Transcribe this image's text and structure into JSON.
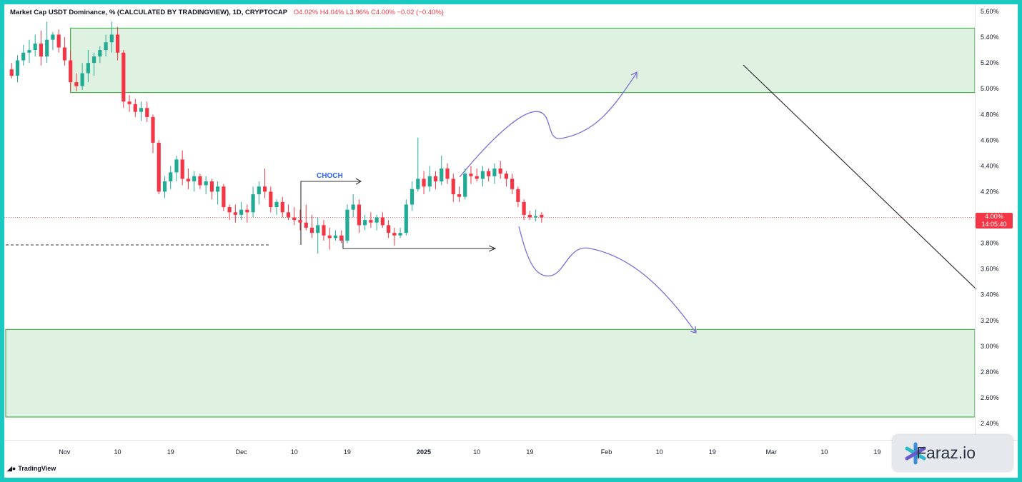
{
  "header": {
    "title": "Market Cap USDT Dominance, % (CALCULATED BY TRADINGVIEW), 1D, CRYPTOCAP",
    "ohlc": "O4.02%  H4.04%  L3.96%  C4.00%  −0.02 (−0.40%)"
  },
  "price_label": {
    "value": "4.00%",
    "timer": "14:05:40"
  },
  "annotation": {
    "choch": "CHOCH"
  },
  "branding": {
    "tradingview": "TradingView",
    "site": "Faraz.io"
  },
  "colors": {
    "up": "#22ab94",
    "down": "#f23645",
    "zone": "#4caf50",
    "zone_fill": "#dff2e1",
    "arrow": "#7b6fd6",
    "frame": "#1bc9c0"
  },
  "chart_data": {
    "type": "candlestick",
    "title": "Market Cap USDT Dominance, % (CALCULATED BY TRADINGVIEW), 1D, CRYPTOCAP",
    "y_unit": "%",
    "ylim": [
      2.4,
      5.6
    ],
    "y_ticks": [
      "5.60%",
      "5.40%",
      "5.20%",
      "5.00%",
      "4.80%",
      "4.60%",
      "4.40%",
      "4.20%",
      "4.00%",
      "3.80%",
      "3.60%",
      "3.40%",
      "3.20%",
      "3.00%",
      "2.80%",
      "2.60%",
      "2.40%"
    ],
    "x_ticks": [
      "Nov",
      "10",
      "19",
      "Dec",
      "10",
      "19",
      "2025",
      "10",
      "19",
      "Feb",
      "10",
      "19",
      "Mar",
      "10",
      "19"
    ],
    "x_range": [
      "2024-10-22",
      "2025-03-27"
    ],
    "candles": [
      [
        "2024-10-23",
        5.15,
        5.2,
        5.08,
        5.1
      ],
      [
        "2024-10-24",
        5.1,
        5.26,
        5.05,
        5.22
      ],
      [
        "2024-10-25",
        5.22,
        5.34,
        5.18,
        5.28
      ],
      [
        "2024-10-26",
        5.28,
        5.38,
        5.2,
        5.3
      ],
      [
        "2024-10-27",
        5.3,
        5.42,
        5.25,
        5.35
      ],
      [
        "2024-10-28",
        5.35,
        5.45,
        5.18,
        5.25
      ],
      [
        "2024-10-29",
        5.25,
        5.52,
        5.2,
        5.38
      ],
      [
        "2024-10-30",
        5.38,
        5.44,
        5.3,
        5.42
      ],
      [
        "2024-10-31",
        5.42,
        5.46,
        5.28,
        5.32
      ],
      [
        "2024-11-01",
        5.32,
        5.4,
        5.18,
        5.22
      ],
      [
        "2024-11-02",
        5.22,
        5.3,
        4.98,
        5.05
      ],
      [
        "2024-11-03",
        5.05,
        5.12,
        4.98,
        5.02
      ],
      [
        "2024-11-04",
        5.02,
        5.2,
        4.99,
        5.12
      ],
      [
        "2024-11-05",
        5.12,
        5.3,
        5.05,
        5.2
      ],
      [
        "2024-11-06",
        5.2,
        5.28,
        5.1,
        5.25
      ],
      [
        "2024-11-07",
        5.25,
        5.33,
        5.2,
        5.3
      ],
      [
        "2024-11-08",
        5.3,
        5.42,
        5.25,
        5.36
      ],
      [
        "2024-11-09",
        5.36,
        5.52,
        5.28,
        5.42
      ],
      [
        "2024-11-10",
        5.42,
        5.48,
        5.22,
        5.28
      ],
      [
        "2024-11-11",
        5.28,
        5.3,
        4.85,
        4.9
      ],
      [
        "2024-11-12",
        4.9,
        4.95,
        4.82,
        4.88
      ],
      [
        "2024-11-13",
        4.88,
        4.92,
        4.78,
        4.82
      ],
      [
        "2024-11-14",
        4.82,
        4.9,
        4.75,
        4.85
      ],
      [
        "2024-11-15",
        4.85,
        4.9,
        4.74,
        4.78
      ],
      [
        "2024-11-16",
        4.78,
        4.8,
        4.5,
        4.58
      ],
      [
        "2024-11-17",
        4.58,
        4.6,
        4.18,
        4.2
      ],
      [
        "2024-11-18",
        4.2,
        4.32,
        4.15,
        4.28
      ],
      [
        "2024-11-19",
        4.28,
        4.4,
        4.22,
        4.35
      ],
      [
        "2024-11-20",
        4.35,
        4.48,
        4.28,
        4.45
      ],
      [
        "2024-11-21",
        4.45,
        4.52,
        4.25,
        4.3
      ],
      [
        "2024-11-22",
        4.3,
        4.38,
        4.22,
        4.28
      ],
      [
        "2024-11-23",
        4.28,
        4.36,
        4.2,
        4.32
      ],
      [
        "2024-11-24",
        4.32,
        4.34,
        4.22,
        4.25
      ],
      [
        "2024-11-25",
        4.25,
        4.32,
        4.18,
        4.28
      ],
      [
        "2024-11-26",
        4.28,
        4.3,
        4.14,
        4.2
      ],
      [
        "2024-11-27",
        4.2,
        4.28,
        4.1,
        4.24
      ],
      [
        "2024-11-28",
        4.24,
        4.26,
        4.05,
        4.08
      ],
      [
        "2024-11-29",
        4.08,
        4.1,
        3.98,
        4.04
      ],
      [
        "2024-11-30",
        4.04,
        4.1,
        3.96,
        4.02
      ],
      [
        "2024-12-01",
        4.02,
        4.12,
        3.98,
        4.06
      ],
      [
        "2024-12-02",
        4.06,
        4.1,
        3.96,
        4.04
      ],
      [
        "2024-12-03",
        4.04,
        4.24,
        4.0,
        4.18
      ],
      [
        "2024-12-04",
        4.18,
        4.28,
        4.1,
        4.24
      ],
      [
        "2024-12-05",
        4.24,
        4.38,
        4.15,
        4.2
      ],
      [
        "2024-12-06",
        4.2,
        4.24,
        4.04,
        4.08
      ],
      [
        "2024-12-07",
        4.08,
        4.14,
        4.02,
        4.12
      ],
      [
        "2024-12-08",
        4.12,
        4.16,
        4.0,
        4.04
      ],
      [
        "2024-12-09",
        4.04,
        4.1,
        3.98,
        4.0
      ],
      [
        "2024-12-10",
        4.0,
        4.08,
        3.94,
        3.98
      ],
      [
        "2024-12-11",
        3.98,
        4.06,
        3.9,
        3.96
      ],
      [
        "2024-12-12",
        3.96,
        4.1,
        3.9,
        3.92
      ],
      [
        "2024-12-13",
        3.92,
        4.02,
        3.84,
        3.88
      ],
      [
        "2024-12-14",
        3.88,
        4.0,
        3.72,
        3.94
      ],
      [
        "2024-12-15",
        3.94,
        3.98,
        3.82,
        3.86
      ],
      [
        "2024-12-16",
        3.86,
        3.92,
        3.75,
        3.84
      ],
      [
        "2024-12-17",
        3.84,
        3.9,
        3.82,
        3.86
      ],
      [
        "2024-12-18",
        3.86,
        3.9,
        3.8,
        3.82
      ],
      [
        "2024-12-19",
        3.82,
        4.1,
        3.8,
        4.06
      ],
      [
        "2024-12-20",
        4.06,
        4.18,
        4.0,
        4.1
      ],
      [
        "2024-12-21",
        4.1,
        4.14,
        3.88,
        3.94
      ],
      [
        "2024-12-22",
        3.94,
        4.02,
        3.9,
        3.98
      ],
      [
        "2024-12-23",
        3.98,
        4.04,
        3.92,
        3.96
      ],
      [
        "2024-12-24",
        3.96,
        4.02,
        3.9,
        4.0
      ],
      [
        "2024-12-25",
        4.0,
        4.04,
        3.92,
        3.94
      ],
      [
        "2024-12-26",
        3.94,
        3.98,
        3.84,
        3.88
      ],
      [
        "2024-12-27",
        3.88,
        3.92,
        3.78,
        3.86
      ],
      [
        "2024-12-28",
        3.86,
        3.92,
        3.84,
        3.88
      ],
      [
        "2024-12-29",
        3.88,
        4.14,
        3.86,
        4.1
      ],
      [
        "2024-12-30",
        4.1,
        4.28,
        4.05,
        4.22
      ],
      [
        "2024-12-31",
        4.22,
        4.62,
        4.2,
        4.3
      ],
      [
        "2025-01-01",
        4.3,
        4.36,
        4.18,
        4.24
      ],
      [
        "2025-01-02",
        4.24,
        4.4,
        4.2,
        4.32
      ],
      [
        "2025-01-03",
        4.32,
        4.36,
        4.22,
        4.28
      ],
      [
        "2025-01-04",
        4.28,
        4.48,
        4.25,
        4.38
      ],
      [
        "2025-01-05",
        4.38,
        4.42,
        4.26,
        4.3
      ],
      [
        "2025-01-06",
        4.3,
        4.34,
        4.12,
        4.18
      ],
      [
        "2025-01-07",
        4.18,
        4.24,
        4.12,
        4.16
      ],
      [
        "2025-01-08",
        4.16,
        4.38,
        4.14,
        4.34
      ],
      [
        "2025-01-09",
        4.34,
        4.4,
        4.26,
        4.32
      ],
      [
        "2025-01-10",
        4.32,
        4.38,
        4.28,
        4.3
      ],
      [
        "2025-01-11",
        4.3,
        4.4,
        4.24,
        4.36
      ],
      [
        "2025-01-12",
        4.36,
        4.38,
        4.28,
        4.32
      ],
      [
        "2025-01-13",
        4.32,
        4.42,
        4.26,
        4.38
      ],
      [
        "2025-01-14",
        4.38,
        4.44,
        4.3,
        4.34
      ],
      [
        "2025-01-15",
        4.34,
        4.36,
        4.24,
        4.3
      ],
      [
        "2025-01-16",
        4.3,
        4.34,
        4.18,
        4.22
      ],
      [
        "2025-01-17",
        4.22,
        4.24,
        4.08,
        4.12
      ],
      [
        "2025-01-18",
        4.12,
        4.14,
        3.98,
        4.02
      ],
      [
        "2025-01-19",
        4.02,
        4.05,
        3.98,
        4.0
      ],
      [
        "2025-01-20",
        4.0,
        4.06,
        3.97,
        4.01
      ],
      [
        "2025-01-21",
        4.02,
        4.04,
        3.96,
        4.0
      ]
    ],
    "current_price": "4.00%",
    "countdown": "14:05:40",
    "zones": [
      {
        "label": "",
        "low": 4.97,
        "high": 5.47,
        "from": "2024-11-02"
      },
      {
        "label": "",
        "low": 2.45,
        "high": 3.13,
        "from": "2024-10-22"
      }
    ],
    "annotations": [
      {
        "text": "CHOCH"
      }
    ]
  }
}
